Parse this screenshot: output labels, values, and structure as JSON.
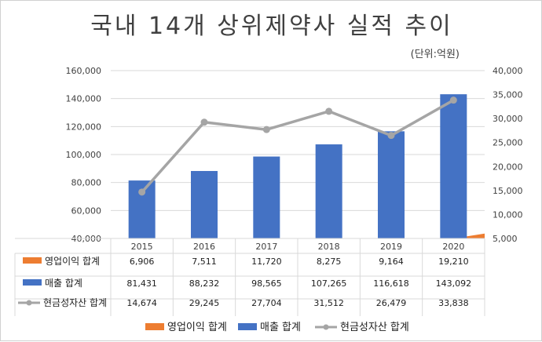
{
  "chart_data": {
    "type": "bar",
    "title": "국내 14개 상위제약사 실적 추이",
    "subtitle": "(단위:억원)",
    "categories": [
      "2015",
      "2016",
      "2017",
      "2018",
      "2019",
      "2020"
    ],
    "series": [
      {
        "name": "영업이익 합계",
        "type": "area",
        "axis": "left",
        "color": "#ED7D31",
        "values": [
          6906,
          7511,
          11720,
          8275,
          9164,
          19210
        ],
        "labels": [
          "6,906",
          "7,511",
          "11,720",
          "8,275",
          "9,164",
          "19,210"
        ]
      },
      {
        "name": "매출 합계",
        "type": "bar",
        "axis": "left",
        "color": "#4472C4",
        "values": [
          81431,
          88232,
          98565,
          107265,
          116618,
          143092
        ],
        "labels": [
          "81,431",
          "88,232",
          "98,565",
          "107,265",
          "116,618",
          "143,092"
        ]
      },
      {
        "name": "현금성자산 합계",
        "type": "line",
        "axis": "right",
        "color": "#A5A5A5",
        "values": [
          14674,
          29245,
          27704,
          31512,
          26479,
          33838
        ],
        "labels": [
          "14,674",
          "29,245",
          "27,704",
          "31,512",
          "26,479",
          "33,838"
        ]
      }
    ],
    "y_left": {
      "min": 40000,
      "max": 160000,
      "step": 20000,
      "ticks": [
        "40,000",
        "60,000",
        "80,000",
        "100,000",
        "120,000",
        "140,000",
        "160,000"
      ]
    },
    "y_right": {
      "min": 5000,
      "max": 40000,
      "step": 5000,
      "ticks": [
        "5,000",
        "10,000",
        "15,000",
        "20,000",
        "25,000",
        "30,000",
        "35,000",
        "40,000"
      ]
    },
    "grid": true,
    "legend": "bottom",
    "data_table": true
  }
}
